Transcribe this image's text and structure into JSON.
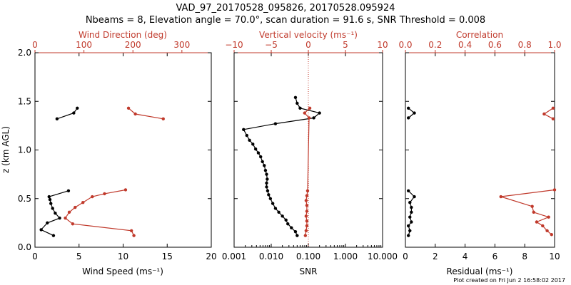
{
  "title_line1": "VAD_97_20170528_095826, 20170528.095924",
  "title_line2": "Nbeams = 8, Elevation angle = 70.0°, scan duration = 91.6 s, SNR Threshold = 0.008",
  "footer": "Plot created on Fri Jun  2 16:58:02 2017",
  "colors": {
    "primary": "#000000",
    "secondary": "#c0392b"
  },
  "chart_data": [
    {
      "type": "line",
      "panel": "left",
      "ylabel": "z (km AGL)",
      "ylim": [
        0,
        2.0
      ],
      "y_ticks": [
        "0.0",
        "0.5",
        "1.0",
        "1.5",
        "2.0"
      ],
      "xlabel_bottom": "Wind Speed (ms⁻¹)",
      "xlim_bottom": [
        0,
        20
      ],
      "x_ticks_bottom": [
        "0",
        "5",
        "10",
        "15",
        "20"
      ],
      "xlabel_top": "Wind Direction (deg)",
      "xlim_top": [
        0,
        360
      ],
      "x_ticks_top": [
        "0",
        "100",
        "200",
        "300"
      ],
      "series": [
        {
          "axis": "bottom",
          "color": "#000000",
          "segments": [
            [
              [
                2.1,
                0.12
              ],
              [
                0.7,
                0.18
              ],
              [
                1.4,
                0.25
              ],
              [
                2.8,
                0.3
              ],
              [
                2.3,
                0.35
              ],
              [
                2.0,
                0.4
              ],
              [
                1.8,
                0.45
              ],
              [
                1.7,
                0.49
              ],
              [
                1.6,
                0.52
              ],
              [
                3.8,
                0.58
              ]
            ],
            [
              [
                2.5,
                1.32
              ],
              [
                4.4,
                1.38
              ],
              [
                4.8,
                1.43
              ]
            ]
          ]
        },
        {
          "axis": "top",
          "color": "#c0392b",
          "segments": [
            [
              [
                202,
                0.12
              ],
              [
                197,
                0.17
              ],
              [
                77,
                0.24
              ],
              [
                62,
                0.3
              ],
              [
                70,
                0.36
              ],
              [
                82,
                0.41
              ],
              [
                98,
                0.46
              ],
              [
                117,
                0.52
              ],
              [
                142,
                0.55
              ],
              [
                185,
                0.59
              ]
            ],
            [
              [
                262,
                1.32
              ],
              [
                205,
                1.37
              ],
              [
                191,
                1.43
              ]
            ]
          ]
        }
      ]
    },
    {
      "type": "line",
      "panel": "middle",
      "xlabel_bottom": "SNR",
      "xscale": "log",
      "xlim_bottom": [
        0.001,
        10
      ],
      "x_ticks_bottom": [
        "0.001",
        "0.010",
        "0.100",
        "1.000",
        "10.000"
      ],
      "xlabel_top": "Vertical velocity (ms⁻¹)",
      "xlim_top": [
        -10,
        10
      ],
      "x_ticks_top": [
        "−10",
        "−5",
        "0",
        "5",
        "10"
      ],
      "ylim": [
        0,
        2.0
      ],
      "zero_line_top": 0,
      "series": [
        {
          "axis": "bottom",
          "color": "#000000",
          "points": [
            [
              0.05,
              0.12
            ],
            [
              0.045,
              0.16
            ],
            [
              0.035,
              0.2
            ],
            [
              0.028,
              0.24
            ],
            [
              0.025,
              0.28
            ],
            [
              0.02,
              0.32
            ],
            [
              0.016,
              0.36
            ],
            [
              0.013,
              0.4
            ],
            [
              0.011,
              0.45
            ],
            [
              0.0095,
              0.5
            ],
            [
              0.0085,
              0.54
            ],
            [
              0.008,
              0.58
            ],
            [
              0.0075,
              0.62
            ],
            [
              0.0075,
              0.66
            ],
            [
              0.0078,
              0.7
            ],
            [
              0.0075,
              0.75
            ],
            [
              0.007,
              0.79
            ],
            [
              0.0065,
              0.84
            ],
            [
              0.0058,
              0.88
            ],
            [
              0.0052,
              0.93
            ],
            [
              0.0045,
              0.97
            ],
            [
              0.0038,
              1.01
            ],
            [
              0.0032,
              1.06
            ],
            [
              0.0026,
              1.1
            ],
            [
              0.0022,
              1.15
            ],
            [
              0.0018,
              1.21
            ],
            [
              0.013,
              1.27
            ],
            [
              0.14,
              1.33
            ],
            [
              0.2,
              1.38
            ],
            [
              0.06,
              1.43
            ],
            [
              0.05,
              1.48
            ],
            [
              0.045,
              1.54
            ]
          ]
        },
        {
          "axis": "top",
          "color": "#c0392b",
          "points": [
            [
              -0.4,
              0.12
            ],
            [
              -0.3,
              0.17
            ],
            [
              -0.2,
              0.22
            ],
            [
              -0.2,
              0.27
            ],
            [
              -0.3,
              0.32
            ],
            [
              -0.2,
              0.37
            ],
            [
              -0.2,
              0.43
            ],
            [
              -0.3,
              0.48
            ],
            [
              -0.2,
              0.53
            ],
            [
              -0.1,
              0.58
            ],
            [
              0.1,
              1.33
            ],
            [
              -0.5,
              1.38
            ],
            [
              0.2,
              1.43
            ]
          ]
        }
      ]
    },
    {
      "type": "line",
      "panel": "right",
      "xlabel_bottom": "Residual (ms⁻¹)",
      "xlim_bottom": [
        0,
        10
      ],
      "x_ticks_bottom": [
        "0",
        "2",
        "4",
        "6",
        "8",
        "10"
      ],
      "xlabel_top": "Correlation",
      "xlim_top": [
        0,
        1.0
      ],
      "x_ticks_top": [
        "0.0",
        "0.2",
        "0.4",
        "0.6",
        "0.8",
        "1.0"
      ],
      "ylim": [
        0,
        2.0
      ],
      "series": [
        {
          "axis": "bottom",
          "color": "#000000",
          "segments": [
            [
              [
                0.2,
                0.12
              ],
              [
                0.3,
                0.17
              ],
              [
                0.2,
                0.22
              ],
              [
                0.4,
                0.26
              ],
              [
                0.3,
                0.31
              ],
              [
                0.4,
                0.36
              ],
              [
                0.4,
                0.41
              ],
              [
                0.3,
                0.46
              ],
              [
                0.6,
                0.52
              ],
              [
                0.2,
                0.58
              ]
            ],
            [
              [
                0.2,
                1.33
              ],
              [
                0.6,
                1.38
              ],
              [
                0.2,
                1.43
              ]
            ]
          ]
        },
        {
          "axis": "top",
          "color": "#c0392b",
          "segments": [
            [
              [
                0.98,
                0.13
              ],
              [
                0.95,
                0.17
              ],
              [
                0.92,
                0.22
              ],
              [
                0.88,
                0.26
              ],
              [
                0.96,
                0.31
              ],
              [
                0.86,
                0.36
              ],
              [
                0.85,
                0.42
              ],
              [
                0.64,
                0.52
              ],
              [
                1.0,
                0.59
              ]
            ],
            [
              [
                0.99,
                1.32
              ],
              [
                0.93,
                1.37
              ],
              [
                0.99,
                1.43
              ]
            ]
          ]
        }
      ]
    }
  ]
}
